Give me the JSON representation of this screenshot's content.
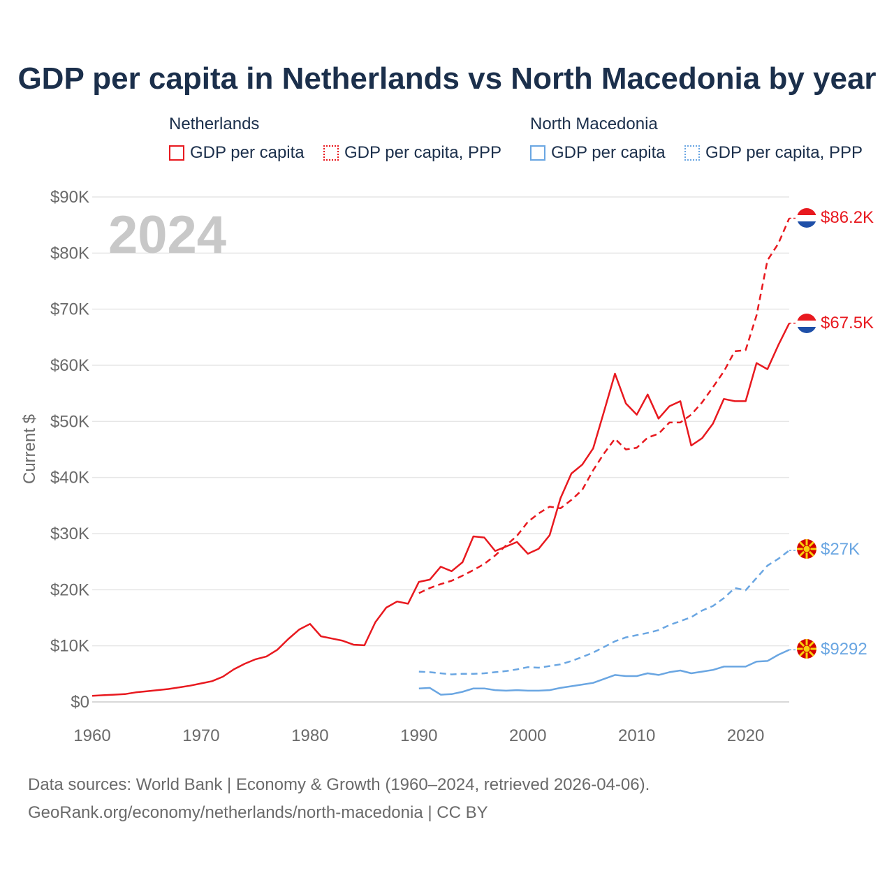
{
  "title": "GDP per capita in Netherlands vs North Macedonia by year",
  "legend": {
    "groups": [
      {
        "country": "Netherlands",
        "items": [
          "GDP per capita",
          "GDP per capita, PPP"
        ],
        "color": "#e8191f"
      },
      {
        "country": "North Macedonia",
        "items": [
          "GDP per capita",
          "GDP per capita, PPP"
        ],
        "color": "#6aa6e2"
      }
    ]
  },
  "year_label": "2024",
  "end_labels": {
    "nl_ppp": "$86.2K",
    "nl_gdp": "$67.5K",
    "mk_ppp": "$27K",
    "mk_gdp": "$9292"
  },
  "sources": {
    "line1": "Data sources: World Bank | Economy & Growth (1960–2024, retrieved 2026-04-06).",
    "line2": "GeoRank.org/economy/netherlands/north-macedonia | CC BY"
  },
  "chart_data": {
    "type": "line",
    "title": "GDP per capita in Netherlands vs North Macedonia by year",
    "xlabel": "",
    "ylabel": "Current $",
    "xlim": [
      1960,
      2024
    ],
    "ylim": [
      0,
      90000
    ],
    "x_ticks": [
      1960,
      1970,
      1980,
      1990,
      2000,
      2010,
      2020
    ],
    "x_tick_labels": [
      "1960",
      "1970",
      "1980",
      "1990",
      "2000",
      "2010",
      "2020"
    ],
    "y_ticks": [
      0,
      10000,
      20000,
      30000,
      40000,
      50000,
      60000,
      70000,
      80000,
      90000
    ],
    "y_tick_labels": [
      "$0",
      "$10K",
      "$20K",
      "$30K",
      "$40K",
      "$50K",
      "$60K",
      "$70K",
      "$80K",
      "$90K"
    ],
    "grid": true,
    "series": [
      {
        "name": "Netherlands GDP per capita",
        "color": "#e8191f",
        "dash": "solid",
        "x": [
          1960,
          1961,
          1962,
          1963,
          1964,
          1965,
          1966,
          1967,
          1968,
          1969,
          1970,
          1971,
          1972,
          1973,
          1974,
          1975,
          1976,
          1977,
          1978,
          1979,
          1980,
          1981,
          1982,
          1983,
          1984,
          1985,
          1986,
          1987,
          1988,
          1989,
          1990,
          1991,
          1992,
          1993,
          1994,
          1995,
          1996,
          1997,
          1998,
          1999,
          2000,
          2001,
          2002,
          2003,
          2004,
          2005,
          2006,
          2007,
          2008,
          2009,
          2010,
          2011,
          2012,
          2013,
          2014,
          2015,
          2016,
          2017,
          2018,
          2019,
          2020,
          2021,
          2022,
          2023,
          2024
        ],
        "values": [
          1100,
          1200,
          1300,
          1400,
          1700,
          1900,
          2100,
          2300,
          2600,
          2900,
          3300,
          3700,
          4500,
          5800,
          6800,
          7600,
          8100,
          9300,
          11200,
          12900,
          13900,
          11700,
          11300,
          10900,
          10200,
          10100,
          14200,
          16800,
          17900,
          17500,
          21400,
          21800,
          24100,
          23300,
          24900,
          29500,
          29300,
          26900,
          27700,
          28500,
          26400,
          27300,
          29700,
          36300,
          40700,
          42300,
          45200,
          51800,
          58500,
          53200,
          51200,
          54800,
          50500,
          52700,
          53600,
          45700,
          47000,
          49600,
          54000,
          53600,
          53600,
          60400,
          59300,
          63600,
          67500
        ]
      },
      {
        "name": "Netherlands GDP per capita, PPP",
        "color": "#e8191f",
        "dash": "dashed",
        "x": [
          1990,
          1991,
          1992,
          1993,
          1994,
          1995,
          1996,
          1997,
          1998,
          1999,
          2000,
          2001,
          2002,
          2003,
          2004,
          2005,
          2006,
          2007,
          2008,
          2009,
          2010,
          2011,
          2012,
          2013,
          2014,
          2015,
          2016,
          2017,
          2018,
          2019,
          2020,
          2021,
          2022,
          2023,
          2024
        ],
        "values": [
          19400,
          20300,
          21000,
          21600,
          22500,
          23500,
          24600,
          26100,
          27900,
          29600,
          32100,
          33600,
          34800,
          34500,
          36000,
          37800,
          41300,
          44300,
          46900,
          45000,
          45300,
          47100,
          47800,
          49800,
          49800,
          51200,
          53400,
          56100,
          58900,
          62500,
          62700,
          68900,
          78700,
          81700,
          86200
        ]
      },
      {
        "name": "North Macedonia GDP per capita",
        "color": "#6aa6e2",
        "dash": "solid",
        "x": [
          1990,
          1991,
          1992,
          1993,
          1994,
          1995,
          1996,
          1997,
          1998,
          1999,
          2000,
          2001,
          2002,
          2003,
          2004,
          2005,
          2006,
          2007,
          2008,
          2009,
          2010,
          2011,
          2012,
          2013,
          2014,
          2015,
          2016,
          2017,
          2018,
          2019,
          2020,
          2021,
          2022,
          2023,
          2024
        ],
        "values": [
          2400,
          2500,
          1300,
          1400,
          1800,
          2400,
          2400,
          2100,
          2000,
          2100,
          2000,
          2000,
          2100,
          2500,
          2800,
          3100,
          3400,
          4100,
          4800,
          4600,
          4600,
          5100,
          4800,
          5300,
          5600,
          5100,
          5400,
          5700,
          6300,
          6300,
          6300,
          7200,
          7300,
          8400,
          9292
        ]
      },
      {
        "name": "North Macedonia GDP per capita, PPP",
        "color": "#6aa6e2",
        "dash": "dashed",
        "x": [
          1990,
          1991,
          1992,
          1993,
          1994,
          1995,
          1996,
          1997,
          1998,
          1999,
          2000,
          2001,
          2002,
          2003,
          2004,
          2005,
          2006,
          2007,
          2008,
          2009,
          2010,
          2011,
          2012,
          2013,
          2014,
          2015,
          2016,
          2017,
          2018,
          2019,
          2020,
          2021,
          2022,
          2023,
          2024
        ],
        "values": [
          5400,
          5300,
          5100,
          4900,
          5000,
          5000,
          5100,
          5300,
          5500,
          5800,
          6200,
          6100,
          6400,
          6700,
          7300,
          8000,
          8800,
          9800,
          10800,
          11500,
          11900,
          12300,
          12800,
          13700,
          14400,
          15100,
          16300,
          17100,
          18500,
          20300,
          19900,
          22100,
          24300,
          25500,
          27000
        ]
      }
    ]
  }
}
